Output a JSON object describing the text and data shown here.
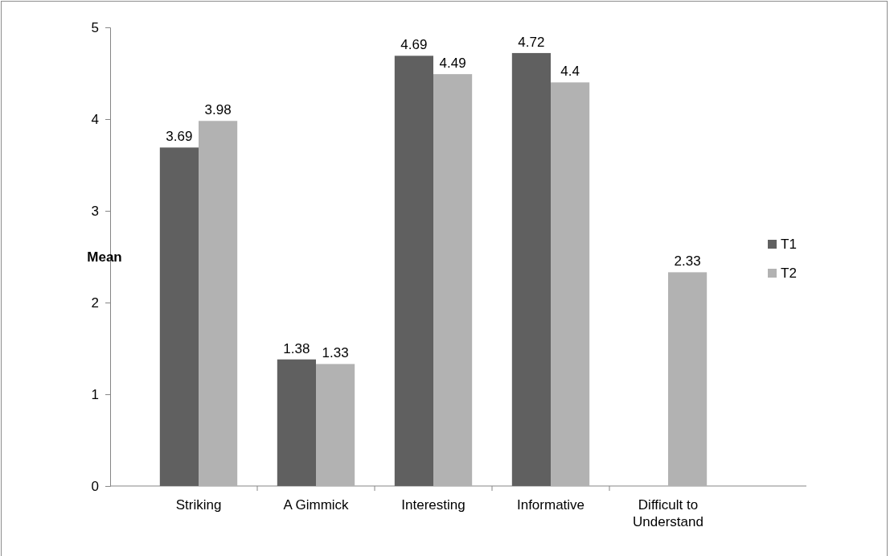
{
  "chart_data": {
    "type": "bar",
    "ylabel": "Mean",
    "categories": [
      "Striking",
      "A Gimmick",
      "Interesting",
      "Informative",
      "Difficult to Understand"
    ],
    "series": [
      {
        "name": "T1",
        "color": "#606060",
        "values": [
          3.69,
          1.38,
          4.69,
          4.72,
          null
        ]
      },
      {
        "name": "T2",
        "color": "#b2b2b2",
        "values": [
          3.98,
          1.33,
          4.49,
          4.4,
          2.33
        ]
      }
    ],
    "ylim": [
      0,
      5
    ],
    "yticks": [
      0,
      1,
      2,
      3,
      4,
      5
    ],
    "grid": false,
    "legend": "right",
    "data_labels": true
  }
}
